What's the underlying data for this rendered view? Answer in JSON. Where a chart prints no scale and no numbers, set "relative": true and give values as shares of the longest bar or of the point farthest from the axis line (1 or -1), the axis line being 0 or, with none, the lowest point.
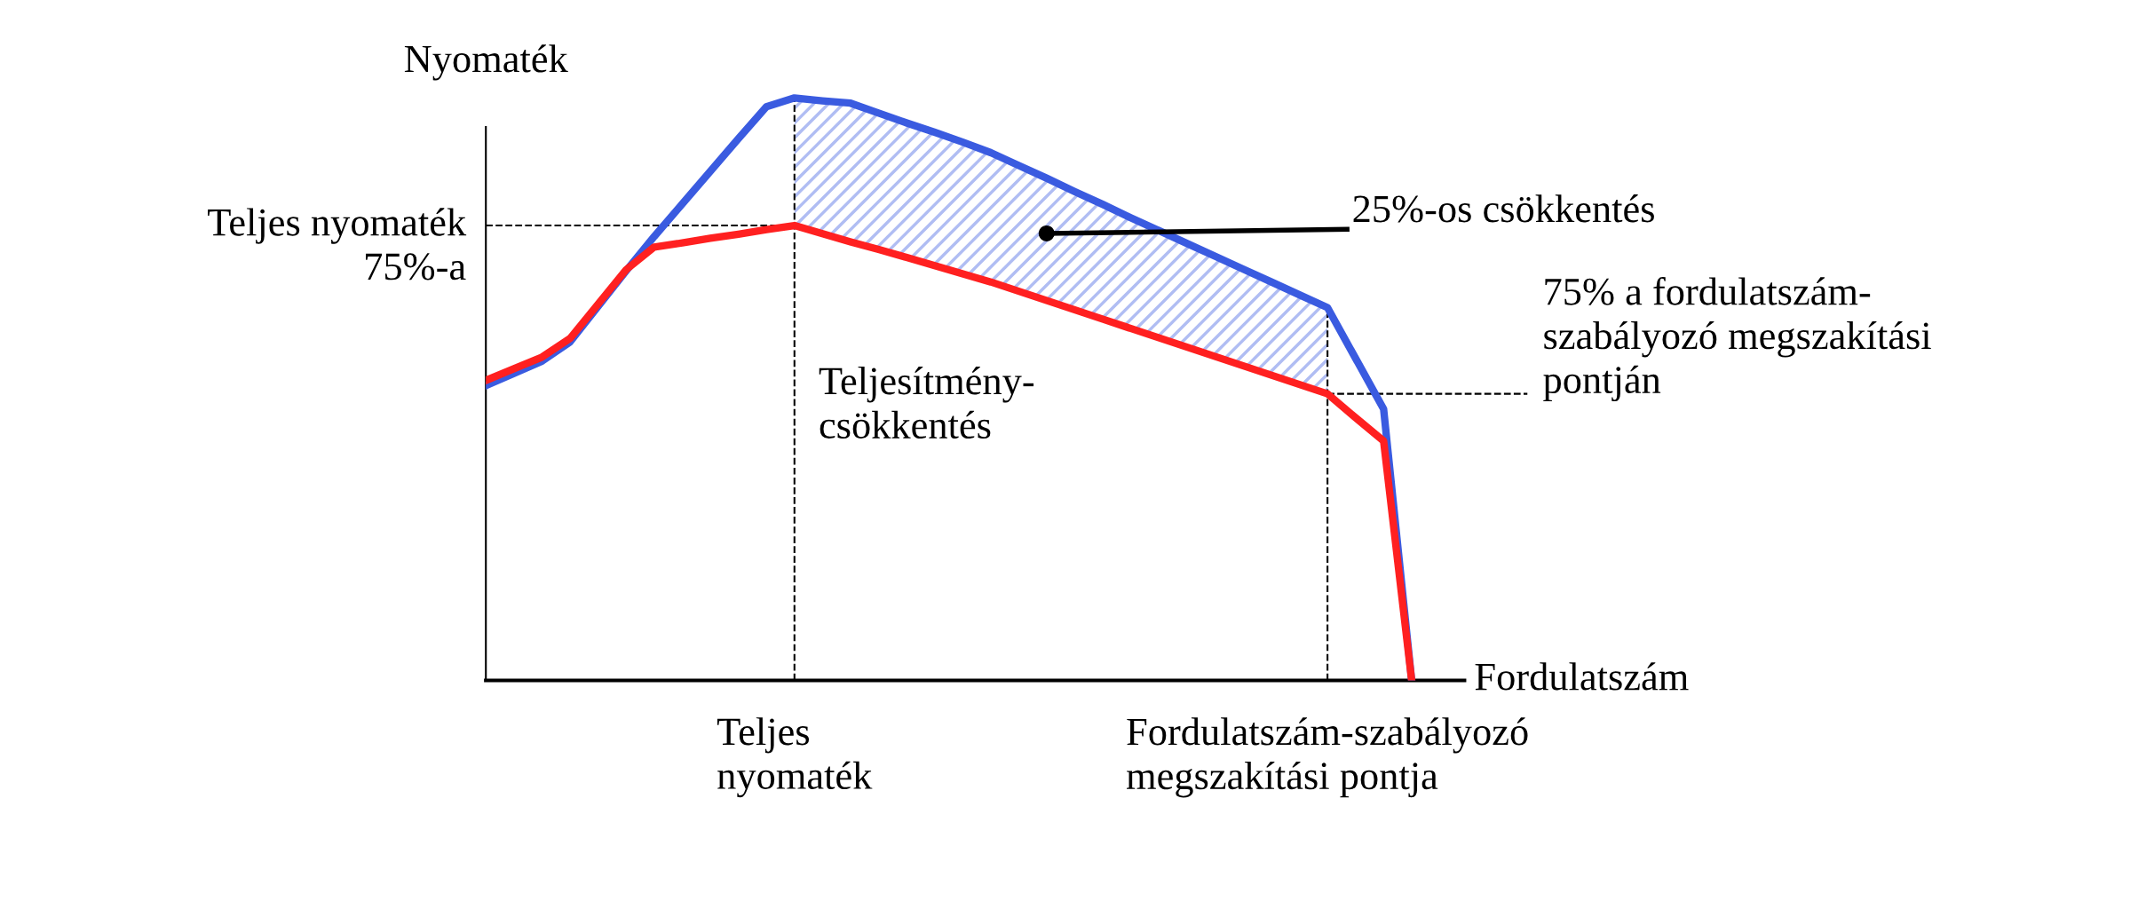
{
  "chart_data": {
    "type": "line",
    "relative": true,
    "xlabel": "Fordulatszám",
    "ylabel": "Nyomaték",
    "tick_labels": "x",
    "marker": "none",
    "line_style": "solid",
    "categories": [
      null,
      null,
      null,
      null,
      null,
      null,
      null,
      null,
      null,
      null,
      null,
      "Teljes\nnyomaték",
      null,
      null,
      null,
      null,
      null,
      null,
      null,
      null,
      null,
      null,
      null,
      null,
      null,
      null,
      null,
      null,
      null,
      null,
      "Fordulatszám-szabályozó\nmegszakítási pontja",
      null,
      null,
      null
    ],
    "series": [
      {
        "color": "#3a5be0",
        "values": [
          0.506,
          0.527,
          0.548,
          0.581,
          0.642,
          0.703,
          0.762,
          0.818,
          0.874,
          0.93,
          0.985,
          1.0,
          0.995,
          0.991,
          0.974,
          0.957,
          0.941,
          0.924,
          0.906,
          0.884,
          0.862,
          0.839,
          0.817,
          0.794,
          0.772,
          0.75,
          0.728,
          0.706,
          0.684,
          0.662,
          0.64,
          0.553,
          0.466,
          0
        ],
        "lower": [
          null,
          null,
          null,
          null,
          null,
          null,
          null,
          null,
          null,
          null,
          null,
          0.781,
          0.767,
          0.753,
          0.74,
          0.726,
          0.712,
          0.698,
          0.684,
          0.668,
          0.652,
          0.636,
          0.62,
          0.604,
          0.588,
          0.572,
          0.556,
          0.54,
          0.524,
          0.508,
          0.492,
          null,
          null,
          null
        ],
        "upper": [
          null,
          null,
          null,
          null,
          null,
          null,
          null,
          null,
          null,
          null,
          null,
          1.0,
          0.995,
          0.991,
          0.974,
          0.957,
          0.941,
          0.924,
          0.906,
          0.884,
          0.862,
          0.839,
          0.817,
          0.794,
          0.772,
          0.75,
          0.728,
          0.706,
          0.684,
          0.662,
          0.64,
          null,
          null,
          null
        ]
      },
      {
        "color": "#ff2020",
        "values": [
          0.515,
          0.535,
          0.555,
          0.587,
          0.646,
          0.705,
          0.744,
          0.751,
          0.759,
          0.766,
          0.774,
          0.781,
          0.767,
          0.753,
          0.74,
          0.726,
          0.712,
          0.698,
          0.684,
          0.668,
          0.652,
          0.636,
          0.62,
          0.604,
          0.588,
          0.572,
          0.556,
          0.54,
          0.524,
          0.508,
          0.492,
          0.451,
          0.411,
          0
        ]
      }
    ],
    "ref_lines": [
      {
        "axis": "x",
        "value": "Teljes\nnyomaték",
        "line_style": "dashed",
        "color": "#000000"
      },
      {
        "axis": "x",
        "value": "Fordulatszám-szabályozó\nmegszakítási pontja",
        "line_style": "dashed",
        "color": "#000000"
      },
      {
        "axis": "y",
        "value": 0.781,
        "label": "Teljes nyomaték\n75%-a",
        "line_style": "dashed",
        "color": "#000000"
      },
      {
        "axis": "y",
        "value": 0.492,
        "label": "75% a fordulatszám-\nszabályozó megszakítási\npontján",
        "line_style": "dashed",
        "color": "#000000"
      }
    ],
    "annotations": [
      "25%-os csökkentés",
      "Teljesítmény-\ncsökkentés"
    ]
  }
}
